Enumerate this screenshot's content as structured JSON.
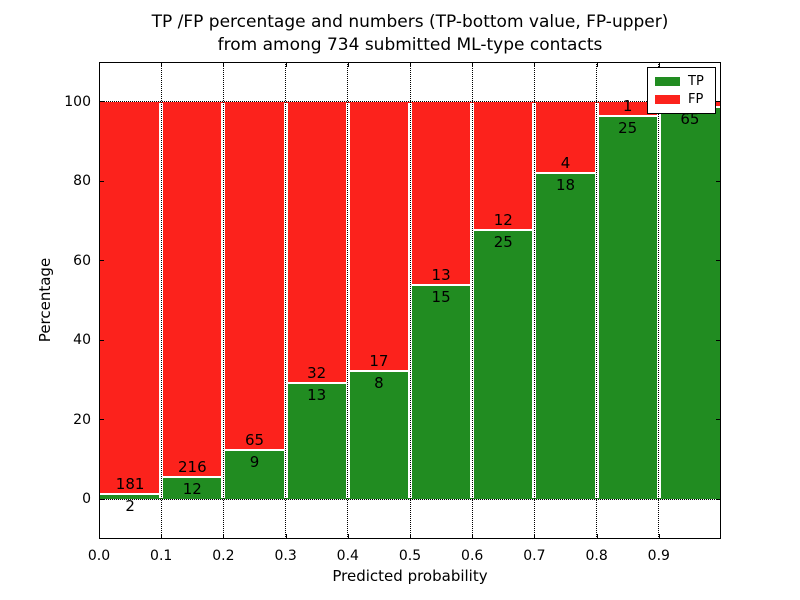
{
  "chart_data": {
    "type": "bar",
    "stacked": true,
    "normalized_to_percent": true,
    "title_line1": "TP /FP percentage and numbers (TP-bottom value, FP-upper)",
    "title_line2": "from among 734 submitted ML-type contacts",
    "total_submitted": 734,
    "xlabel": "Predicted probability",
    "ylabel": "Percentage",
    "x_tick_labels": [
      "0.0",
      "0.1",
      "0.2",
      "0.3",
      "0.4",
      "0.5",
      "0.6",
      "0.7",
      "0.8",
      "0.9"
    ],
    "y_tick_values": [
      0,
      20,
      40,
      60,
      80,
      100
    ],
    "xlim": [
      0.0,
      1.0
    ],
    "ylim": [
      -10,
      110
    ],
    "grid": "dotted",
    "colors": {
      "tp": "#218c21",
      "fp": "#fc221c"
    },
    "legend": {
      "position": "upper-right",
      "items": [
        {
          "label": "TP",
          "color_key": "tp"
        },
        {
          "label": "FP",
          "color_key": "fp"
        }
      ]
    },
    "bins": [
      {
        "x_start": 0.0,
        "x_end": 0.1,
        "tp": 2,
        "fp": 181,
        "tp_pct": 1.09
      },
      {
        "x_start": 0.1,
        "x_end": 0.2,
        "tp": 12,
        "fp": 216,
        "tp_pct": 5.26
      },
      {
        "x_start": 0.2,
        "x_end": 0.3,
        "tp": 9,
        "fp": 65,
        "tp_pct": 12.16
      },
      {
        "x_start": 0.3,
        "x_end": 0.4,
        "tp": 13,
        "fp": 32,
        "tp_pct": 28.89
      },
      {
        "x_start": 0.4,
        "x_end": 0.5,
        "tp": 8,
        "fp": 17,
        "tp_pct": 32.0
      },
      {
        "x_start": 0.5,
        "x_end": 0.6,
        "tp": 15,
        "fp": 13,
        "tp_pct": 53.57
      },
      {
        "x_start": 0.6,
        "x_end": 0.7,
        "tp": 25,
        "fp": 12,
        "tp_pct": 67.57
      },
      {
        "x_start": 0.7,
        "x_end": 0.8,
        "tp": 18,
        "fp": 4,
        "tp_pct": 81.82
      },
      {
        "x_start": 0.8,
        "x_end": 0.9,
        "tp": 25,
        "fp": 1,
        "tp_pct": 96.15
      },
      {
        "x_start": 0.9,
        "x_end": 1.0,
        "tp": 65,
        "fp": null,
        "tp_pct": 98.48
      }
    ]
  }
}
